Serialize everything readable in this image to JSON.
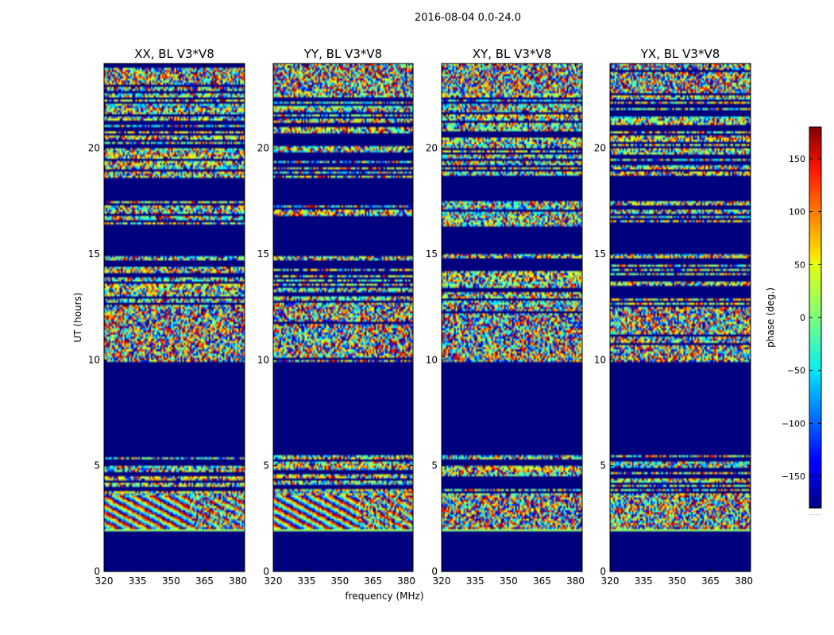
{
  "chart_data": {
    "type": "heatmap",
    "title": "2016-08-04 0.0-24.0",
    "xlabel": "frequency (MHz)",
    "ylabel": "UT (hours)",
    "xlim": [
      320,
      383
    ],
    "ylim": [
      0,
      24
    ],
    "xticks": [
      320,
      335,
      350,
      365,
      380
    ],
    "yticks": [
      0,
      5,
      10,
      15,
      20
    ],
    "panels": [
      {
        "title": "XX, BL V3*V8",
        "variant": 0
      },
      {
        "title": "YY, BL V3*V8",
        "variant": 1
      },
      {
        "title": "XY, BL V3*V8",
        "variant": 2
      },
      {
        "title": "YX, BL V3*V8",
        "variant": 3
      }
    ],
    "colorbar": {
      "label": "phase (deg.)",
      "range": [
        -180,
        180
      ],
      "ticks": [
        -150,
        -100,
        -50,
        0,
        50,
        100,
        150
      ],
      "cmap": "jet",
      "under_label": "......"
    },
    "bands": [
      {
        "t0": 0.0,
        "t1": 1.9,
        "kind": "flagged"
      },
      {
        "t0": 1.9,
        "t1": 2.0,
        "kind": "green"
      },
      {
        "t0": 2.0,
        "t1": 3.6,
        "kind": "fringe"
      },
      {
        "t0": 3.6,
        "t1": 5.5,
        "kind": "striped"
      },
      {
        "t0": 5.5,
        "t1": 9.9,
        "kind": "flagged"
      },
      {
        "t0": 9.9,
        "t1": 12.6,
        "kind": "noise"
      },
      {
        "t0": 12.6,
        "t1": 15.0,
        "kind": "striped"
      },
      {
        "t0": 15.0,
        "t1": 16.3,
        "kind": "flagged"
      },
      {
        "t0": 16.3,
        "t1": 17.5,
        "kind": "striped"
      },
      {
        "t0": 17.5,
        "t1": 18.6,
        "kind": "flagged"
      },
      {
        "t0": 18.6,
        "t1": 20.2,
        "kind": "striped"
      },
      {
        "t0": 20.2,
        "t1": 22.6,
        "kind": "striped"
      },
      {
        "t0": 22.6,
        "t1": 24.0,
        "kind": "noise"
      }
    ]
  }
}
